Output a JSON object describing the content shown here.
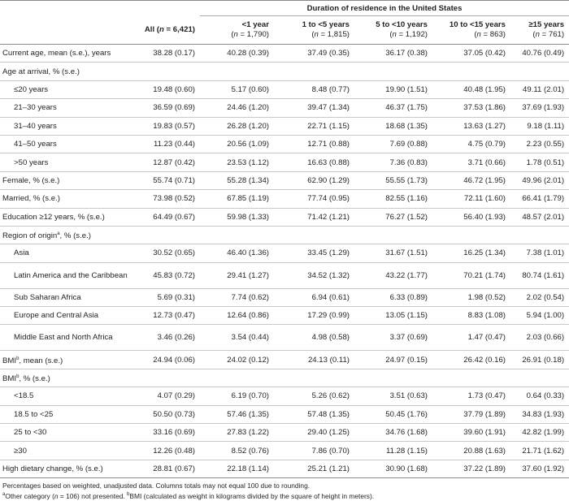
{
  "table": {
    "span_header": "Duration of residence in the United States",
    "columns": [
      {
        "label": "All (",
        "n_italic": "n",
        "rest": " = 6,421)",
        "inline": true
      },
      {
        "label": "<1 year",
        "n_italic": "n",
        "rest": " = 1,790)"
      },
      {
        "label": "1 to <5 years",
        "n_italic": "n",
        "rest": " = 1,815)"
      },
      {
        "label": "5 to <10 years",
        "n_italic": "n",
        "rest": " = 1,192)"
      },
      {
        "label": "10 to <15 years",
        "n_italic": "n",
        "rest": " = 863)"
      },
      {
        "label": "≥15 years",
        "n_italic": "n",
        "rest": " = 761)"
      }
    ],
    "rows": [
      {
        "label": "Current age, mean (s.e.), years",
        "values": [
          "38.28 (0.17)",
          "40.28 (0.39)",
          "37.49 (0.35)",
          "36.17 (0.38)",
          "37.05 (0.42)",
          "40.76 (0.49)"
        ]
      },
      {
        "label": "Age at arrival, % (s.e.)",
        "values": [
          "",
          "",
          "",
          "",
          "",
          ""
        ]
      },
      {
        "label": "≤20 years",
        "indent": true,
        "values": [
          "19.48 (0.60)",
          "5.17 (0.60)",
          "8.48 (0.77)",
          "19.90 (1.51)",
          "40.48 (1.95)",
          "49.11 (2.01)"
        ]
      },
      {
        "label": "21–30 years",
        "indent": true,
        "values": [
          "36.59 (0.69)",
          "24.46 (1.20)",
          "39.47 (1.34)",
          "46.37 (1.75)",
          "37.53 (1.86)",
          "37.69 (1.93)"
        ]
      },
      {
        "label": "31–40 years",
        "indent": true,
        "values": [
          "19.83 (0.57)",
          "26.28 (1.20)",
          "22.71 (1.15)",
          "18.68 (1.35)",
          "13.63 (1.27)",
          "9.18 (1.11)"
        ]
      },
      {
        "label": "41–50 years",
        "indent": true,
        "values": [
          "11.23 (0.44)",
          "20.56 (1.09)",
          "12.71 (0.88)",
          "7.69 (0.88)",
          "4.75 (0.79)",
          "2.23 (0.55)"
        ]
      },
      {
        "label": ">50 years",
        "indent": true,
        "values": [
          "12.87 (0.42)",
          "23.53 (1.12)",
          "16.63 (0.88)",
          "7.36 (0.83)",
          "3.71 (0.66)",
          "1.78 (0.51)"
        ]
      },
      {
        "label": "Female, % (s.e.)",
        "values": [
          "55.74 (0.71)",
          "55.28 (1.34)",
          "62.90 (1.29)",
          "55.55 (1.73)",
          "46.72 (1.95)",
          "49.96 (2.01)"
        ]
      },
      {
        "label": "Married, % (s.e.)",
        "values": [
          "73.98 (0.52)",
          "67.85 (1.19)",
          "77.74 (0.95)",
          "82.55 (1.16)",
          "72.11 (1.60)",
          "66.41 (1.79)"
        ]
      },
      {
        "label": "Education ≥12 years, % (s.e.)",
        "values": [
          "64.49 (0.67)",
          "59.98 (1.33)",
          "71.42 (1.21)",
          "76.27 (1.52)",
          "56.40 (1.93)",
          "48.57 (2.01)"
        ]
      },
      {
        "label": "Region of origin",
        "sup": "a",
        "label_rest": ", % (s.e.)",
        "values": [
          "",
          "",
          "",
          "",
          "",
          ""
        ]
      },
      {
        "label": "Asia",
        "indent": true,
        "values": [
          "30.52 (0.65)",
          "46.40 (1.36)",
          "33.45 (1.29)",
          "31.67 (1.51)",
          "16.25 (1.34)",
          "7.38 (1.01)"
        ]
      },
      {
        "label": "Latin America and the Caribbean",
        "indent": true,
        "tall": true,
        "values": [
          "45.83 (0.72)",
          "29.41 (1.27)",
          "34.52 (1.32)",
          "43.22 (1.77)",
          "70.21 (1.74)",
          "80.74 (1.61)"
        ]
      },
      {
        "label": "Sub Saharan Africa",
        "indent": true,
        "values": [
          "5.69 (0.31)",
          "7.74 (0.62)",
          "6.94 (0.61)",
          "6.33 (0.89)",
          "1.98 (0.52)",
          "2.02 (0.54)"
        ]
      },
      {
        "label": "Europe and Central Asia",
        "indent": true,
        "values": [
          "12.73 (0.47)",
          "12.64 (0.86)",
          "17.29 (0.99)",
          "13.05 (1.15)",
          "8.83 (1.08)",
          "5.94 (1.00)"
        ]
      },
      {
        "label": "Middle East and North Africa",
        "indent": true,
        "tall": true,
        "values": [
          "3.46 (0.26)",
          "3.54 (0.44)",
          "4.98 (0.58)",
          "3.37 (0.69)",
          "1.47 (0.47)",
          "2.03 (0.66)"
        ]
      },
      {
        "label": "BMI",
        "sup": "b",
        "label_rest": ", mean (s.e.)",
        "values": [
          "24.94 (0.06)",
          "24.02 (0.12)",
          "24.13 (0.11)",
          "24.97 (0.15)",
          "26.42 (0.16)",
          "26.91 (0.18)"
        ]
      },
      {
        "label": "BMI",
        "sup": "b",
        "label_rest": ", % (s.e.)",
        "values": [
          "",
          "",
          "",
          "",
          "",
          ""
        ]
      },
      {
        "label": "<18.5",
        "indent": true,
        "values": [
          "4.07 (0.29)",
          "6.19 (0.70)",
          "5.26 (0.62)",
          "3.51 (0.63)",
          "1.73 (0.47)",
          "0.64 (0.33)"
        ]
      },
      {
        "label": "18.5 to <25",
        "indent": true,
        "values": [
          "50.50 (0.73)",
          "57.46 (1.35)",
          "57.48 (1.35)",
          "50.45 (1.76)",
          "37.79 (1.89)",
          "34.83 (1.93)"
        ]
      },
      {
        "label": "25 to <30",
        "indent": true,
        "values": [
          "33.16 (0.69)",
          "27.83 (1.22)",
          "29.40 (1.25)",
          "34.76 (1.68)",
          "39.60 (1.91)",
          "42.82 (1.99)"
        ]
      },
      {
        "label": "≥30",
        "indent": true,
        "values": [
          "12.26 (0.48)",
          "8.52 (0.76)",
          "7.86 (0.70)",
          "11.28 (1.15)",
          "20.88 (1.63)",
          "21.71 (1.62)"
        ]
      },
      {
        "label": "High dietary change, % (s.e.)",
        "values": [
          "28.81 (0.67)",
          "22.18 (1.14)",
          "25.21 (1.21)",
          "30.90 (1.68)",
          "37.22 (1.89)",
          "37.60 (1.92)"
        ]
      }
    ]
  },
  "footnotes": {
    "line1": "Percentages based on weighted, unadjusted data. Columns totals may not equal 100 due to rounding.",
    "line2_sup_a": "a",
    "line2_a": "Other category (",
    "line2_n": "n",
    "line2_b": " = 106) not presented. ",
    "line2_sup_b": "b",
    "line2_c": "BMI (calculated as weight in kilograms divided by the square of height in meters)."
  }
}
